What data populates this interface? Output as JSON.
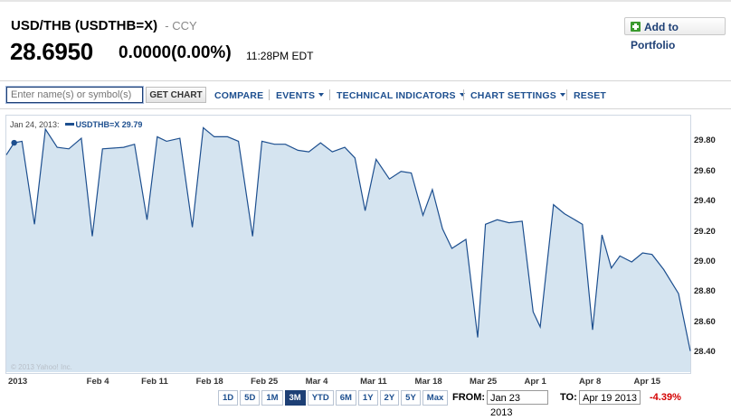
{
  "header": {
    "title": "USD/THB (USDTHB=X)",
    "exchange": "- CCY",
    "price": "28.6950",
    "change": "0.0000(0.00%)",
    "time": "11:28PM EDT",
    "add_portfolio": "Add to Portfolio"
  },
  "toolbar": {
    "search_placeholder": "Enter name(s) or symbol(s)",
    "get_chart": "GET CHART",
    "compare": "COMPARE",
    "events": "EVENTS",
    "technical_indicators": "TECHNICAL INDICATORS",
    "chart_settings": "CHART SETTINGS",
    "reset": "RESET"
  },
  "legend": {
    "date": "Jan 24, 2013:",
    "series": "USDTHB=X 29.79"
  },
  "watermark": "© 2013 Yahoo! Inc.",
  "ranges": [
    "1D",
    "5D",
    "1M",
    "3M",
    "YTD",
    "6M",
    "1Y",
    "2Y",
    "5Y",
    "Max"
  ],
  "active_range": "3M",
  "from_label": "FROM:",
  "from_value": "Jan 23 2013",
  "to_label": "TO:",
  "to_value": "Apr 19 2013",
  "period_change": "-4.39%",
  "colors": {
    "line": "#1d4f8f",
    "fill": "#d5e4f0",
    "negative": "#d40000"
  },
  "chart_data": {
    "type": "area",
    "title": "",
    "xlabel": "",
    "ylabel": "",
    "ylim": [
      28.27,
      29.97
    ],
    "y_ticks": [
      "29.80",
      "29.60",
      "29.40",
      "29.20",
      "29.00",
      "28.80",
      "28.60",
      "28.40"
    ],
    "y_tick_values": [
      29.8,
      29.6,
      29.4,
      29.2,
      29.0,
      28.8,
      28.6,
      28.4
    ],
    "x_ticks": [
      "2013",
      "Feb 4",
      "Feb 11",
      "Feb 18",
      "Feb 25",
      "Mar 4",
      "Mar 11",
      "Mar 18",
      "Mar 25",
      "Apr 1",
      "Apr 8",
      "Apr 15"
    ],
    "x_tick_days": [
      0,
      12,
      19,
      26,
      33,
      40,
      47,
      54,
      61,
      68,
      75,
      82
    ],
    "x_days": [
      0,
      1,
      2,
      3.6,
      5,
      6.5,
      8,
      9.6,
      11,
      12.3,
      15,
      16.4,
      18,
      19.3,
      20.5,
      22.2,
      23.8,
      25.2,
      26.6,
      28.3,
      29.7,
      31.5,
      32.7,
      34.3,
      35.7,
      37.3,
      38.7,
      40.2,
      41.7,
      43.3,
      44.6,
      45.9,
      47.3,
      49,
      50.5,
      51.8,
      53.3,
      54.5,
      55.8,
      57,
      58.8,
      60.3,
      61.3,
      62.8,
      64.3,
      66,
      67.4,
      68.3,
      70,
      71.4,
      73.7,
      75,
      76.2,
      77.4,
      78.5,
      80,
      81.4,
      82.6,
      84.1,
      86,
      87.5
    ],
    "values": [
      29.71,
      29.79,
      29.8,
      29.25,
      29.88,
      29.76,
      29.75,
      29.82,
      29.17,
      29.75,
      29.76,
      29.78,
      29.28,
      29.83,
      29.8,
      29.82,
      29.23,
      29.89,
      29.83,
      29.83,
      29.8,
      29.17,
      29.8,
      29.78,
      29.78,
      29.74,
      29.73,
      29.79,
      29.73,
      29.76,
      29.69,
      29.34,
      29.68,
      29.55,
      29.6,
      29.59,
      29.31,
      29.48,
      29.22,
      29.09,
      29.15,
      28.5,
      29.25,
      29.28,
      29.26,
      29.27,
      28.67,
      28.57,
      29.38,
      29.32,
      29.25,
      28.55,
      29.18,
      28.96,
      29.04,
      29.0,
      29.06,
      29.05,
      28.95,
      28.79,
      28.41
    ],
    "marker": {
      "x_day": 1,
      "value": 29.79
    },
    "grid": false,
    "legend_position": "top-left"
  }
}
